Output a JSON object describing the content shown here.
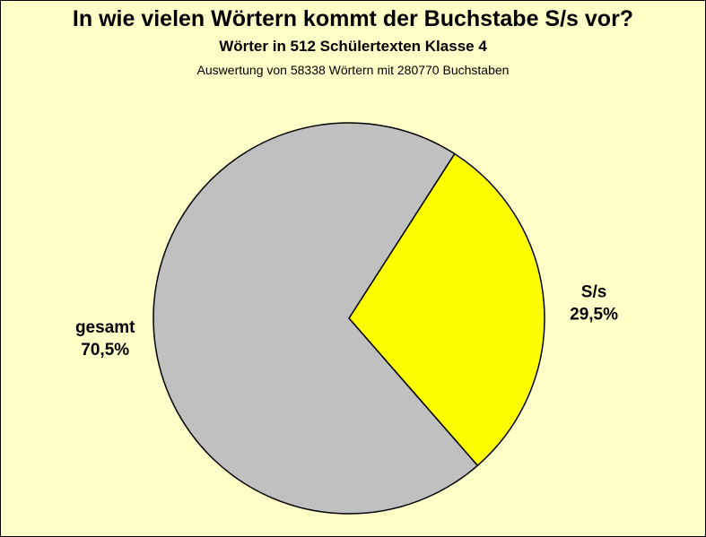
{
  "chart_data": {
    "type": "pie",
    "title": "In wie vielen Wörtern kommt der Buchstabe S/s vor?",
    "subtitle": "Wörter in 512 Schülertexten Klasse 4",
    "note": "Auswertung von 58338 Wörtern mit 280770 Buchstaben",
    "slices": [
      {
        "label": "S/s",
        "value": 29.5,
        "value_label": "29,5%",
        "color": "#ffff00"
      },
      {
        "label": "gesamt",
        "value": 70.5,
        "value_label": "70,5%",
        "color": "#c0c0c0"
      }
    ],
    "background_color": "#ffffc8"
  }
}
